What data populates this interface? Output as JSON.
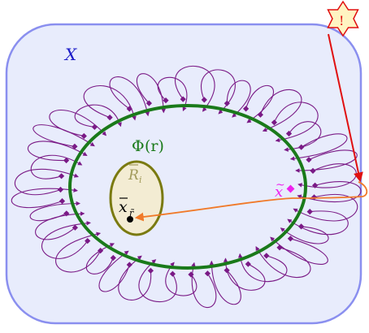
{
  "labels": {
    "space": "X",
    "boundary_phi": "Φ",
    "boundary_arg": "(r)",
    "region_R": "R",
    "region_R_sub": "i",
    "point_x": "x",
    "point_x_sub": "r̃",
    "point_xtilde": "x",
    "alert_mark": "!"
  },
  "colors": {
    "space_fill": "#e8ecfc",
    "space_stroke": "#8a8fef",
    "space_label": "#1c1cc8",
    "boundary": "#1a7a1a",
    "region_fill": "#f3ecd3",
    "region_stroke": "#7a7a10",
    "region_label": "#a19a5a",
    "trajectory": "#7a1a86",
    "perturbation": "#f07a2a",
    "point_xtilde": "#ee22ee",
    "alert_fill": "#fff4c2",
    "alert_stroke": "#e01010",
    "alert_arrow": "#e01010"
  }
}
